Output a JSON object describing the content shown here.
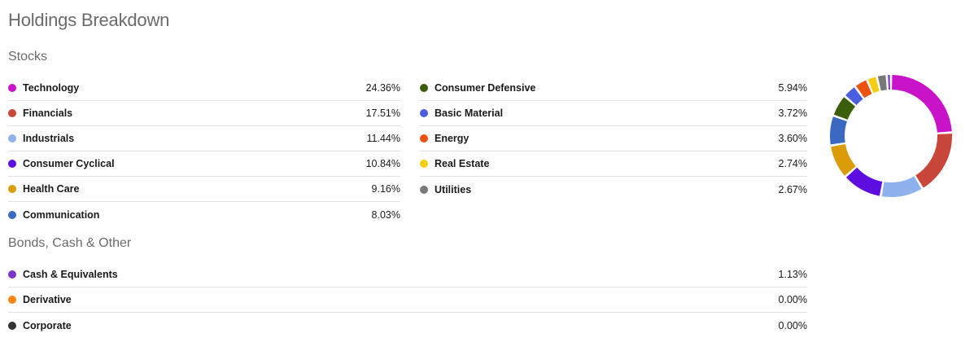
{
  "title": "Holdings Breakdown",
  "stocks": {
    "heading": "Stocks",
    "left": [
      {
        "label": "Technology",
        "value": "24.36%",
        "pct": 24.36,
        "color": "#c913c9"
      },
      {
        "label": "Financials",
        "value": "17.51%",
        "pct": 17.51,
        "color": "#c9473a"
      },
      {
        "label": "Industrials",
        "value": "11.44%",
        "pct": 11.44,
        "color": "#8fb2ee"
      },
      {
        "label": "Consumer Cyclical",
        "value": "10.84%",
        "pct": 10.84,
        "color": "#5d0de0"
      },
      {
        "label": "Health Care",
        "value": "9.16%",
        "pct": 9.16,
        "color": "#dc9c08"
      },
      {
        "label": "Communication",
        "value": "8.03%",
        "pct": 8.03,
        "color": "#3b69c2"
      }
    ],
    "right": [
      {
        "label": "Consumer Defensive",
        "value": "5.94%",
        "pct": 5.94,
        "color": "#3b5e0a"
      },
      {
        "label": "Basic Material",
        "value": "3.72%",
        "pct": 3.72,
        "color": "#4a5fe0"
      },
      {
        "label": "Energy",
        "value": "3.60%",
        "pct": 3.6,
        "color": "#ec5310"
      },
      {
        "label": "Real Estate",
        "value": "2.74%",
        "pct": 2.74,
        "color": "#f5cd12"
      },
      {
        "label": "Utilities",
        "value": "2.67%",
        "pct": 2.67,
        "color": "#787878"
      }
    ]
  },
  "bonds": {
    "heading": "Bonds, Cash & Other",
    "items": [
      {
        "label": "Cash & Equivalents",
        "value": "1.13%",
        "pct": 1.13,
        "color": "#7b35c8"
      },
      {
        "label": "Derivative",
        "value": "0.00%",
        "pct": 0.0,
        "color": "#f5850e"
      },
      {
        "label": "Corporate",
        "value": "0.00%",
        "pct": 0.0,
        "color": "#333333"
      }
    ]
  }
}
